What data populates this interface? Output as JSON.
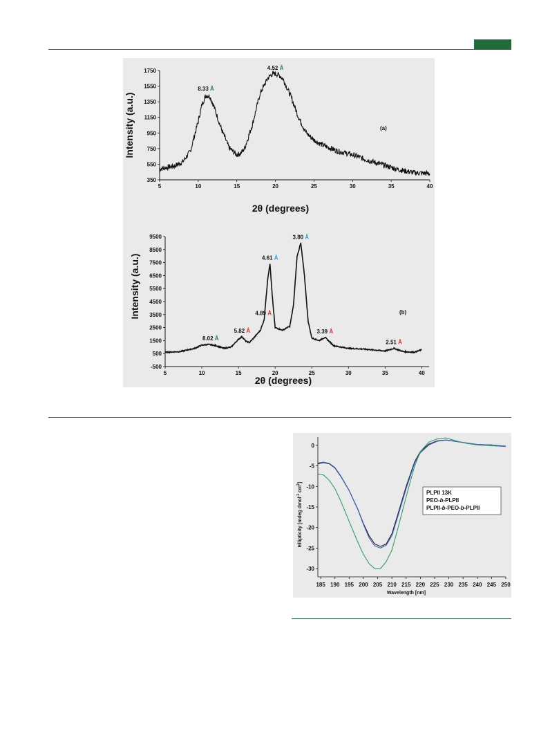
{
  "page": {
    "tab_color": "#1f6b3a",
    "rule_color": "#2e6b62"
  },
  "chart_data": [
    {
      "type": "line",
      "panel_label": "(a)",
      "xlabel": "2θ (degrees)",
      "ylabel": "Intensity (a.u.)",
      "xlim": [
        5,
        40
      ],
      "ylim": [
        350,
        1750
      ],
      "x_ticks": [
        5,
        10,
        15,
        20,
        25,
        30,
        35,
        40
      ],
      "y_ticks": [
        350,
        550,
        750,
        950,
        1150,
        1350,
        1550,
        1750
      ],
      "x": [
        5,
        7,
        8,
        9,
        10,
        10.5,
        11,
        11.5,
        12,
        13,
        14,
        15,
        15.5,
        16,
        17,
        18,
        19,
        19.5,
        20,
        20.5,
        21,
        22,
        23,
        24,
        25,
        26,
        28,
        30,
        32,
        34,
        36,
        38,
        40
      ],
      "y": [
        490,
        530,
        580,
        720,
        1100,
        1320,
        1430,
        1420,
        1300,
        1000,
        760,
        670,
        690,
        750,
        1050,
        1450,
        1650,
        1700,
        1710,
        1690,
        1640,
        1420,
        1150,
        950,
        860,
        800,
        720,
        670,
        600,
        540,
        480,
        440,
        430
      ],
      "annotations": [
        {
          "x": 11,
          "y": 1450,
          "value": "8.33",
          "unit": "Å",
          "color": "#2a7a4b"
        },
        {
          "x": 20,
          "y": 1715,
          "value": "4.52",
          "unit": "Å",
          "color": "#2a7a4b"
        }
      ],
      "grid": false
    },
    {
      "type": "line",
      "panel_label": "(b)",
      "xlabel": "2θ (degrees)",
      "ylabel": "Intensity (a.u.)",
      "xlim": [
        5,
        41
      ],
      "ylim": [
        -500,
        9500
      ],
      "x_ticks": [
        5,
        10,
        15,
        20,
        25,
        30,
        35,
        40
      ],
      "y_ticks": [
        -500,
        500,
        1500,
        2500,
        3500,
        4500,
        5500,
        6500,
        7500,
        8500,
        9500
      ],
      "x": [
        5,
        7,
        9,
        10,
        11,
        12,
        13,
        14,
        15,
        15.5,
        16,
        16.5,
        17,
        18,
        18.5,
        19,
        19.3,
        19.6,
        20,
        21,
        22,
        22.5,
        23,
        23.5,
        24,
        24.5,
        25,
        26,
        26.8,
        28,
        30,
        32,
        34,
        35,
        36.2,
        37.5,
        39,
        40
      ],
      "y": [
        600,
        650,
        900,
        1150,
        1200,
        1100,
        900,
        1000,
        1600,
        1800,
        1450,
        1350,
        1650,
        2300,
        3100,
        6300,
        7400,
        5000,
        2500,
        2300,
        2600,
        4200,
        8000,
        9000,
        6500,
        3000,
        1700,
        1500,
        1750,
        1100,
        900,
        850,
        750,
        700,
        900,
        650,
        600,
        800
      ],
      "annotations": [
        {
          "x": 11.2,
          "y": 1250,
          "value": "8.02",
          "unit": "Å",
          "color": "#2a7a4b"
        },
        {
          "x": 15.5,
          "y": 1850,
          "value": "5.82",
          "unit": "Å",
          "color": "#e0302a"
        },
        {
          "x": 18.4,
          "y": 3200,
          "value": "4.89",
          "unit": "Å",
          "color": "#e0302a"
        },
        {
          "x": 19.3,
          "y": 7450,
          "value": "4.61",
          "unit": "Å",
          "color": "#2aa4d8"
        },
        {
          "x": 23.5,
          "y": 9050,
          "value": "3.80",
          "unit": "Å",
          "color": "#2aa4d8"
        },
        {
          "x": 26.8,
          "y": 1800,
          "value": "3.39",
          "unit": "Å",
          "color": "#e0302a"
        },
        {
          "x": 36.2,
          "y": 950,
          "value": "2.51",
          "unit": "Å",
          "color": "#e0302a"
        }
      ],
      "grid": false
    },
    {
      "type": "line",
      "xlabel": "Wavelength [nm]",
      "ylabel": "Ellipticity [mdeg dmol",
      "ylabel_sup1": "-1",
      "ylabel_mid": " cm",
      "ylabel_sup2": "2",
      "ylabel_end": "]",
      "xlim": [
        184,
        250
      ],
      "ylim": [
        -32,
        2
      ],
      "x_ticks": [
        185,
        190,
        195,
        200,
        205,
        210,
        215,
        220,
        225,
        230,
        235,
        240,
        245,
        250
      ],
      "y_ticks": [
        0,
        -5,
        -10,
        -15,
        -20,
        -25,
        -30
      ],
      "legend_position": "right",
      "series": [
        {
          "name": "PLPII 13K",
          "color": "#1a1a2e",
          "x": [
            184,
            186,
            188,
            190,
            192,
            195,
            198,
            200,
            202,
            204,
            206,
            208,
            210,
            212,
            215,
            218,
            220,
            223,
            226,
            229,
            232,
            236,
            240,
            245,
            250
          ],
          "y": [
            -4.5,
            -4.2,
            -4.5,
            -5.5,
            -7.5,
            -11,
            -15.5,
            -19,
            -22,
            -24,
            -24.6,
            -24,
            -21.5,
            -17,
            -10,
            -4,
            -1.5,
            0.3,
            1.1,
            1.3,
            1.0,
            0.6,
            0.2,
            0.1,
            -0.2
          ]
        },
        {
          "name": "PEO-b-PLPII",
          "color": "#3b5bb5",
          "x": [
            184,
            186,
            188,
            190,
            192,
            195,
            198,
            200,
            202,
            204,
            206,
            208,
            210,
            212,
            215,
            218,
            220,
            223,
            226,
            229,
            232,
            236,
            240,
            245,
            250
          ],
          "y": [
            -4.3,
            -4.1,
            -4.4,
            -5.4,
            -7.4,
            -11,
            -15.5,
            -19.2,
            -22.5,
            -24.5,
            -25,
            -24.3,
            -22,
            -17.5,
            -10.5,
            -4.3,
            -1.8,
            0.1,
            1.0,
            1.3,
            1.0,
            0.6,
            0.2,
            0.1,
            -0.2
          ]
        },
        {
          "name": "PLPII-b-PEO-b-PLPII",
          "color": "#2e9d6a",
          "x": [
            184,
            186,
            188,
            190,
            192,
            195,
            198,
            200,
            202,
            204,
            206,
            208,
            210,
            212,
            215,
            218,
            220,
            223,
            226,
            229,
            232,
            236,
            240,
            245,
            250
          ],
          "y": [
            -7,
            -7.2,
            -8.5,
            -10.5,
            -13.5,
            -18.5,
            -23.5,
            -26.5,
            -28.8,
            -30,
            -30,
            -28.3,
            -25.5,
            -20.5,
            -12.5,
            -5,
            -1.5,
            0.8,
            1.6,
            1.8,
            1.2,
            0.5,
            0.1,
            -0.1,
            -0.3
          ]
        }
      ],
      "legend": [
        {
          "parts": [
            {
              "t": "PLPII 13K",
              "i": false
            }
          ],
          "color": "#1a1a2e"
        },
        {
          "parts": [
            {
              "t": "PEO-",
              "i": false
            },
            {
              "t": "b",
              "i": true
            },
            {
              "t": "-PLPII",
              "i": false
            }
          ],
          "color": "#3b5bb5"
        },
        {
          "parts": [
            {
              "t": "PLPII-",
              "i": false
            },
            {
              "t": "b",
              "i": true
            },
            {
              "t": "-PEO-",
              "i": false
            },
            {
              "t": "b",
              "i": true
            },
            {
              "t": "-PLPII",
              "i": false
            }
          ],
          "color": "#2e9d6a"
        }
      ],
      "grid": false
    }
  ]
}
